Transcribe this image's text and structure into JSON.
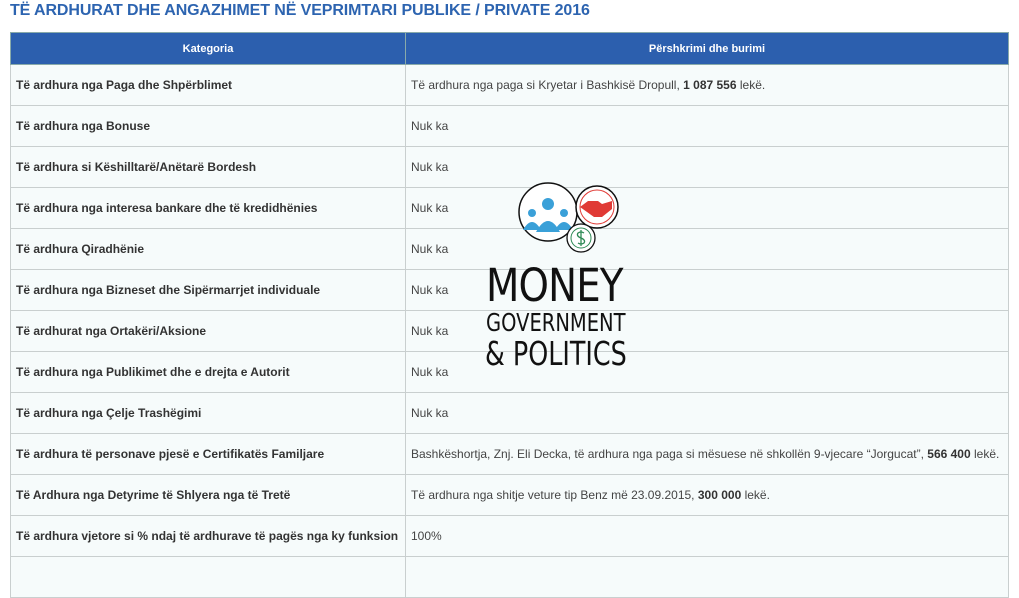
{
  "title": "TË ARDHURAT DHE ANGAZHIMET NË VEPRIMTARI PUBLIKE / PRIVATE 2016",
  "headers": [
    "Kategoria",
    "Përshkrimi dhe burimi"
  ],
  "rows": [
    {
      "category": "Të ardhura nga Paga dhe Shpërblimet",
      "pre": "Të ardhura nga paga si Kryetar i Bashkisë Dropull, ",
      "bold": "1 087 556",
      "post": " lekë."
    },
    {
      "category": "Të ardhura nga Bonuse",
      "pre": "Nuk ka",
      "bold": "",
      "post": ""
    },
    {
      "category": "Të ardhura si Këshilltarë/Anëtarë Bordesh",
      "pre": "Nuk ka",
      "bold": "",
      "post": ""
    },
    {
      "category": "Të ardhura nga interesa bankare dhe të kredidhënies",
      "pre": "Nuk ka",
      "bold": "",
      "post": ""
    },
    {
      "category": "Të ardhura Qiradhënie",
      "pre": "Nuk ka",
      "bold": "",
      "post": ""
    },
    {
      "category": "Të ardhura nga Bizneset dhe Sipërmarrjet individuale",
      "pre": "Nuk ka",
      "bold": "",
      "post": ""
    },
    {
      "category": "Të ardhurat nga Ortakëri/Aksione",
      "pre": "Nuk ka",
      "bold": "",
      "post": ""
    },
    {
      "category": "Të ardhura nga Publikimet dhe e drejta e Autorit",
      "pre": "Nuk ka",
      "bold": "",
      "post": ""
    },
    {
      "category": "Të ardhura nga Çelje Trashëgimi",
      "pre": "Nuk ka",
      "bold": "",
      "post": ""
    },
    {
      "category": "Të ardhura të personave pjesë e Certifikatës Familjare",
      "pre": "Bashkëshortja, Znj. Eli Decka, të ardhura nga paga si mësuese në shkollën 9-vjecare “Jorgucat”, ",
      "bold": "566 400",
      "post": " lekë."
    },
    {
      "category": "Të Ardhura nga Detyrime të Shlyera nga të Tretë",
      "pre": "Të ardhura nga shitje veture tip Benz më 23.09.2015, ",
      "bold": "300 000",
      "post": " lekë."
    },
    {
      "category": "Të ardhura vjetore si % ndaj të ardhurave të pagës nga ky funksion",
      "pre": "100%",
      "bold": "",
      "post": ""
    },
    {
      "category": "",
      "pre": "",
      "bold": "",
      "post": ""
    }
  ],
  "watermark": {
    "line1": "MONEY",
    "line2": "GOVERNMENT",
    "line3": "& POLITICS",
    "colors": {
      "people": "#3aa0d8",
      "handshake": "#e03a35",
      "money": "#2e8a55"
    }
  }
}
